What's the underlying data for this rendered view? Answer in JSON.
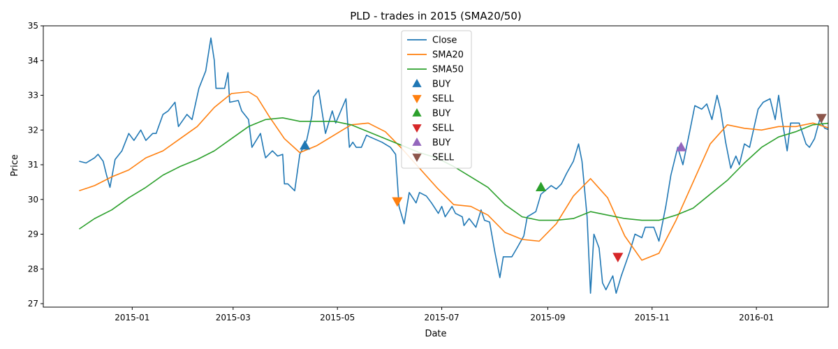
{
  "chart_data": {
    "type": "line",
    "title": "PLD - trades in 2015 (SMA20/50)",
    "xlabel": "Date",
    "ylabel": "Price",
    "xlim": [
      "2014-11-10",
      "2016-02-12"
    ],
    "ylim": [
      26.9,
      35
    ],
    "x_ticks": [
      "2015-01-01",
      "2015-03-01",
      "2015-05-01",
      "2015-07-01",
      "2015-09-01",
      "2015-11-01",
      "2016-01-01"
    ],
    "x_tick_labels": [
      "2015-01",
      "2015-03",
      "2015-05",
      "2015-07",
      "2015-09",
      "2015-11",
      "2016-01"
    ],
    "y_ticks": [
      27,
      28,
      29,
      30,
      31,
      32,
      33,
      34,
      35
    ],
    "y_tick_labels": [
      "27",
      "28",
      "29",
      "30",
      "31",
      "32",
      "33",
      "34",
      "35"
    ],
    "grid": false,
    "legend_position": "top-center",
    "series": [
      {
        "name": "Close",
        "color": "#1f77b4",
        "points": [
          [
            "2014-12-01",
            31.1
          ],
          [
            "2014-12-05",
            31.05
          ],
          [
            "2014-12-10",
            31.2
          ],
          [
            "2014-12-12",
            31.3
          ],
          [
            "2014-12-15",
            31.1
          ],
          [
            "2014-12-17",
            30.7
          ],
          [
            "2014-12-19",
            30.35
          ],
          [
            "2014-12-22",
            31.15
          ],
          [
            "2014-12-26",
            31.4
          ],
          [
            "2014-12-30",
            31.9
          ],
          [
            "2015-01-02",
            31.7
          ],
          [
            "2015-01-06",
            32.0
          ],
          [
            "2015-01-09",
            31.7
          ],
          [
            "2015-01-13",
            31.9
          ],
          [
            "2015-01-15",
            31.9
          ],
          [
            "2015-01-19",
            32.45
          ],
          [
            "2015-01-22",
            32.55
          ],
          [
            "2015-01-26",
            32.8
          ],
          [
            "2015-01-28",
            32.1
          ],
          [
            "2015-02-02",
            32.45
          ],
          [
            "2015-02-05",
            32.3
          ],
          [
            "2015-02-09",
            33.2
          ],
          [
            "2015-02-13",
            33.7
          ],
          [
            "2015-02-16",
            34.65
          ],
          [
            "2015-02-18",
            34.0
          ],
          [
            "2015-02-19",
            33.2
          ],
          [
            "2015-02-24",
            33.2
          ],
          [
            "2015-02-26",
            33.65
          ],
          [
            "2015-02-27",
            32.8
          ],
          [
            "2015-03-04",
            32.85
          ],
          [
            "2015-03-06",
            32.55
          ],
          [
            "2015-03-10",
            32.3
          ],
          [
            "2015-03-12",
            31.5
          ],
          [
            "2015-03-17",
            31.9
          ],
          [
            "2015-03-19",
            31.4
          ],
          [
            "2015-03-20",
            31.2
          ],
          [
            "2015-03-24",
            31.4
          ],
          [
            "2015-03-27",
            31.25
          ],
          [
            "2015-03-30",
            31.3
          ],
          [
            "2015-03-31",
            30.45
          ],
          [
            "2015-04-02",
            30.45
          ],
          [
            "2015-04-06",
            30.25
          ],
          [
            "2015-04-09",
            31.3
          ],
          [
            "2015-04-13",
            31.7
          ],
          [
            "2015-04-16",
            32.4
          ],
          [
            "2015-04-17",
            32.95
          ],
          [
            "2015-04-20",
            33.15
          ],
          [
            "2015-04-24",
            31.9
          ],
          [
            "2015-04-28",
            32.55
          ],
          [
            "2015-04-30",
            32.2
          ],
          [
            "2015-05-06",
            32.9
          ],
          [
            "2015-05-08",
            31.5
          ],
          [
            "2015-05-10",
            31.65
          ],
          [
            "2015-05-12",
            31.5
          ],
          [
            "2015-05-15",
            31.5
          ],
          [
            "2015-05-18",
            31.85
          ],
          [
            "2015-05-20",
            31.8
          ],
          [
            "2015-05-27",
            31.65
          ],
          [
            "2015-06-01",
            31.5
          ],
          [
            "2015-06-04",
            31.3
          ],
          [
            "2015-06-06",
            29.8
          ],
          [
            "2015-06-09",
            29.3
          ],
          [
            "2015-06-12",
            30.2
          ],
          [
            "2015-06-16",
            29.9
          ],
          [
            "2015-06-18",
            30.2
          ],
          [
            "2015-06-22",
            30.1
          ],
          [
            "2015-06-25",
            29.9
          ],
          [
            "2015-06-29",
            29.6
          ],
          [
            "2015-07-01",
            29.8
          ],
          [
            "2015-07-03",
            29.5
          ],
          [
            "2015-07-07",
            29.8
          ],
          [
            "2015-07-09",
            29.6
          ],
          [
            "2015-07-13",
            29.5
          ],
          [
            "2015-07-14",
            29.25
          ],
          [
            "2015-07-17",
            29.45
          ],
          [
            "2015-07-21",
            29.2
          ],
          [
            "2015-07-24",
            29.7
          ],
          [
            "2015-07-26",
            29.4
          ],
          [
            "2015-07-29",
            29.35
          ],
          [
            "2015-08-01",
            28.5
          ],
          [
            "2015-08-04",
            27.75
          ],
          [
            "2015-08-06",
            28.35
          ],
          [
            "2015-08-11",
            28.35
          ],
          [
            "2015-08-14",
            28.6
          ],
          [
            "2015-08-18",
            28.95
          ],
          [
            "2015-08-20",
            29.5
          ],
          [
            "2015-08-25",
            29.65
          ],
          [
            "2015-08-28",
            30.15
          ],
          [
            "2015-09-03",
            30.4
          ],
          [
            "2015-09-06",
            30.3
          ],
          [
            "2015-09-09",
            30.45
          ],
          [
            "2015-09-12",
            30.75
          ],
          [
            "2015-09-16",
            31.1
          ],
          [
            "2015-09-19",
            31.6
          ],
          [
            "2015-09-21",
            31.1
          ],
          [
            "2015-09-24",
            29.5
          ],
          [
            "2015-09-26",
            27.3
          ],
          [
            "2015-09-28",
            29.0
          ],
          [
            "2015-10-01",
            28.6
          ],
          [
            "2015-10-03",
            27.6
          ],
          [
            "2015-10-05",
            27.4
          ],
          [
            "2015-10-09",
            27.8
          ],
          [
            "2015-10-11",
            27.3
          ],
          [
            "2015-10-14",
            27.8
          ],
          [
            "2015-10-19",
            28.5
          ],
          [
            "2015-10-22",
            29.0
          ],
          [
            "2015-10-26",
            28.9
          ],
          [
            "2015-10-28",
            29.2
          ],
          [
            "2015-11-02",
            29.2
          ],
          [
            "2015-11-05",
            28.8
          ],
          [
            "2015-11-09",
            29.8
          ],
          [
            "2015-11-12",
            30.7
          ],
          [
            "2015-11-16",
            31.5
          ],
          [
            "2015-11-19",
            31.0
          ],
          [
            "2015-11-23",
            31.95
          ],
          [
            "2015-11-26",
            32.7
          ],
          [
            "2015-11-30",
            32.6
          ],
          [
            "2015-12-03",
            32.75
          ],
          [
            "2015-12-06",
            32.3
          ],
          [
            "2015-12-09",
            33.0
          ],
          [
            "2015-12-11",
            32.6
          ],
          [
            "2015-12-14",
            31.65
          ],
          [
            "2015-12-17",
            30.9
          ],
          [
            "2015-12-20",
            31.25
          ],
          [
            "2015-12-22",
            31.0
          ],
          [
            "2015-12-25",
            31.6
          ],
          [
            "2015-12-28",
            31.5
          ],
          [
            "2016-01-02",
            32.6
          ],
          [
            "2016-01-05",
            32.8
          ],
          [
            "2016-01-09",
            32.9
          ],
          [
            "2016-01-12",
            32.3
          ],
          [
            "2016-01-14",
            33.0
          ],
          [
            "2016-01-16",
            32.3
          ],
          [
            "2016-01-19",
            31.4
          ],
          [
            "2016-01-21",
            32.2
          ],
          [
            "2016-01-26",
            32.2
          ],
          [
            "2016-01-30",
            31.6
          ],
          [
            "2016-02-01",
            31.5
          ],
          [
            "2016-02-04",
            31.75
          ],
          [
            "2016-02-07",
            32.3
          ],
          [
            "2016-02-10",
            32.05
          ],
          [
            "2016-02-13",
            32.0
          ]
        ]
      },
      {
        "name": "SMA20",
        "color": "#ff7f0e",
        "points": [
          [
            "2014-12-01",
            30.25
          ],
          [
            "2014-12-10",
            30.4
          ],
          [
            "2014-12-20",
            30.65
          ],
          [
            "2014-12-30",
            30.85
          ],
          [
            "2015-01-09",
            31.2
          ],
          [
            "2015-01-19",
            31.4
          ],
          [
            "2015-01-29",
            31.75
          ],
          [
            "2015-02-08",
            32.1
          ],
          [
            "2015-02-18",
            32.65
          ],
          [
            "2015-02-28",
            33.05
          ],
          [
            "2015-03-10",
            33.1
          ],
          [
            "2015-03-15",
            32.95
          ],
          [
            "2015-03-22",
            32.4
          ],
          [
            "2015-03-31",
            31.75
          ],
          [
            "2015-04-09",
            31.35
          ],
          [
            "2015-04-19",
            31.55
          ],
          [
            "2015-04-29",
            31.85
          ],
          [
            "2015-05-09",
            32.15
          ],
          [
            "2015-05-19",
            32.2
          ],
          [
            "2015-05-29",
            31.95
          ],
          [
            "2015-06-08",
            31.45
          ],
          [
            "2015-06-18",
            30.9
          ],
          [
            "2015-06-28",
            30.35
          ],
          [
            "2015-07-08",
            29.85
          ],
          [
            "2015-07-18",
            29.8
          ],
          [
            "2015-07-28",
            29.55
          ],
          [
            "2015-08-07",
            29.05
          ],
          [
            "2015-08-17",
            28.85
          ],
          [
            "2015-08-27",
            28.8
          ],
          [
            "2015-09-06",
            29.3
          ],
          [
            "2015-09-16",
            30.1
          ],
          [
            "2015-09-26",
            30.6
          ],
          [
            "2015-10-06",
            30.05
          ],
          [
            "2015-10-16",
            28.95
          ],
          [
            "2015-10-26",
            28.25
          ],
          [
            "2015-11-05",
            28.45
          ],
          [
            "2015-11-15",
            29.4
          ],
          [
            "2015-11-25",
            30.5
          ],
          [
            "2015-12-05",
            31.6
          ],
          [
            "2015-12-15",
            32.15
          ],
          [
            "2015-12-25",
            32.05
          ],
          [
            "2016-01-04",
            32.0
          ],
          [
            "2016-01-14",
            32.1
          ],
          [
            "2016-01-24",
            32.1
          ],
          [
            "2016-02-03",
            32.2
          ],
          [
            "2016-02-13",
            32.05
          ]
        ]
      },
      {
        "name": "SMA50",
        "color": "#2ca02c",
        "points": [
          [
            "2014-12-01",
            29.15
          ],
          [
            "2014-12-10",
            29.45
          ],
          [
            "2014-12-20",
            29.7
          ],
          [
            "2014-12-30",
            30.05
          ],
          [
            "2015-01-09",
            30.35
          ],
          [
            "2015-01-19",
            30.7
          ],
          [
            "2015-01-29",
            30.95
          ],
          [
            "2015-02-08",
            31.15
          ],
          [
            "2015-02-18",
            31.4
          ],
          [
            "2015-02-28",
            31.75
          ],
          [
            "2015-03-10",
            32.1
          ],
          [
            "2015-03-20",
            32.3
          ],
          [
            "2015-03-30",
            32.35
          ],
          [
            "2015-04-09",
            32.25
          ],
          [
            "2015-04-19",
            32.25
          ],
          [
            "2015-04-29",
            32.25
          ],
          [
            "2015-05-09",
            32.15
          ],
          [
            "2015-05-19",
            31.95
          ],
          [
            "2015-05-29",
            31.75
          ],
          [
            "2015-06-08",
            31.55
          ],
          [
            "2015-06-18",
            31.35
          ],
          [
            "2015-06-28",
            31.2
          ],
          [
            "2015-07-08",
            30.95
          ],
          [
            "2015-07-18",
            30.65
          ],
          [
            "2015-07-28",
            30.35
          ],
          [
            "2015-08-07",
            29.85
          ],
          [
            "2015-08-17",
            29.5
          ],
          [
            "2015-08-27",
            29.4
          ],
          [
            "2015-09-06",
            29.4
          ],
          [
            "2015-09-16",
            29.45
          ],
          [
            "2015-09-26",
            29.65
          ],
          [
            "2015-10-06",
            29.55
          ],
          [
            "2015-10-16",
            29.45
          ],
          [
            "2015-10-26",
            29.4
          ],
          [
            "2015-11-05",
            29.4
          ],
          [
            "2015-11-15",
            29.55
          ],
          [
            "2015-11-25",
            29.75
          ],
          [
            "2015-12-05",
            30.15
          ],
          [
            "2015-12-15",
            30.55
          ],
          [
            "2015-12-25",
            31.05
          ],
          [
            "2016-01-04",
            31.5
          ],
          [
            "2016-01-14",
            31.8
          ],
          [
            "2016-01-24",
            31.95
          ],
          [
            "2016-02-03",
            32.15
          ],
          [
            "2016-02-13",
            32.2
          ]
        ]
      }
    ],
    "markers": [
      {
        "name": "BUY",
        "shape": "triangle-up",
        "color": "#1f77b4",
        "x": "2015-04-12",
        "y": 31.55
      },
      {
        "name": "SELL",
        "shape": "triangle-down",
        "color": "#ff7f0e",
        "x": "2015-06-05",
        "y": 29.95
      },
      {
        "name": "BUY",
        "shape": "triangle-up",
        "color": "#2ca02c",
        "x": "2015-08-28",
        "y": 30.35
      },
      {
        "name": "SELL",
        "shape": "triangle-down",
        "color": "#d62728",
        "x": "2015-10-12",
        "y": 28.35
      },
      {
        "name": "BUY",
        "shape": "triangle-up",
        "color": "#9467bd",
        "x": "2015-11-18",
        "y": 31.5
      },
      {
        "name": "SELL",
        "shape": "triangle-down",
        "color": "#8c564b",
        "x": "2016-02-08",
        "y": 32.35
      }
    ]
  }
}
